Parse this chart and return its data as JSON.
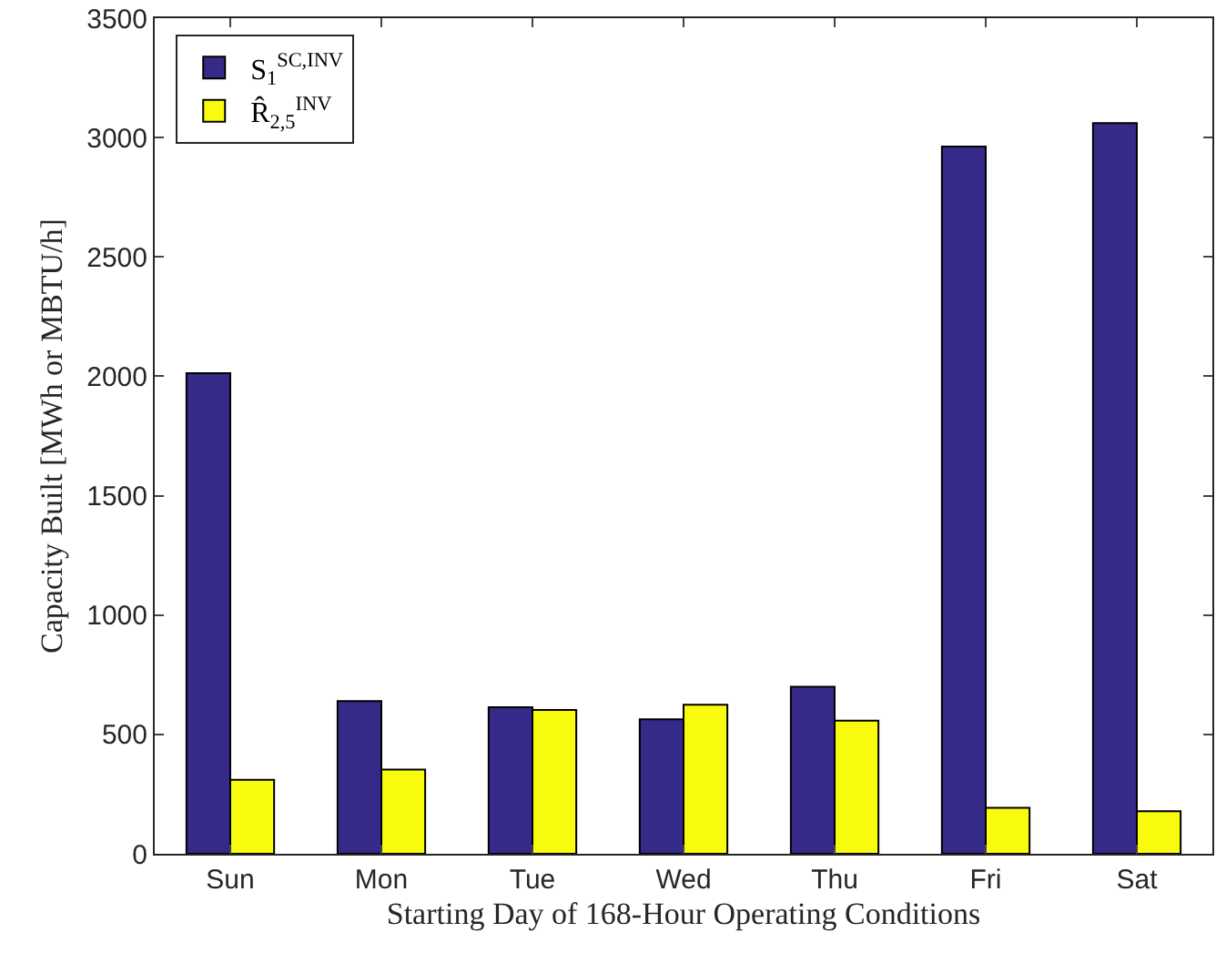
{
  "chart_data": {
    "type": "bar",
    "xlabel": "Starting Day of 168-Hour Operating Conditions",
    "ylabel": "Capacity Built [MWh or MBTU/h]",
    "categories": [
      "Sun",
      "Mon",
      "Tue",
      "Wed",
      "Thu",
      "Fri",
      "Sat"
    ],
    "series": [
      {
        "name": "S$_{1}$$^{SC,INV}$",
        "color": "#352a87",
        "values": [
          2013,
          640,
          614,
          563,
          700,
          2962,
          3061
        ]
      },
      {
        "name": "R̂$_{2,5}$$^{INV}$",
        "color": "#f9fb0e",
        "values": [
          310,
          353,
          602,
          624,
          558,
          193,
          178
        ]
      }
    ],
    "ylim": [
      0,
      3500
    ],
    "yticks": [
      0,
      500,
      1000,
      1500,
      2000,
      2500,
      3000,
      3500
    ],
    "legend": "top left"
  }
}
